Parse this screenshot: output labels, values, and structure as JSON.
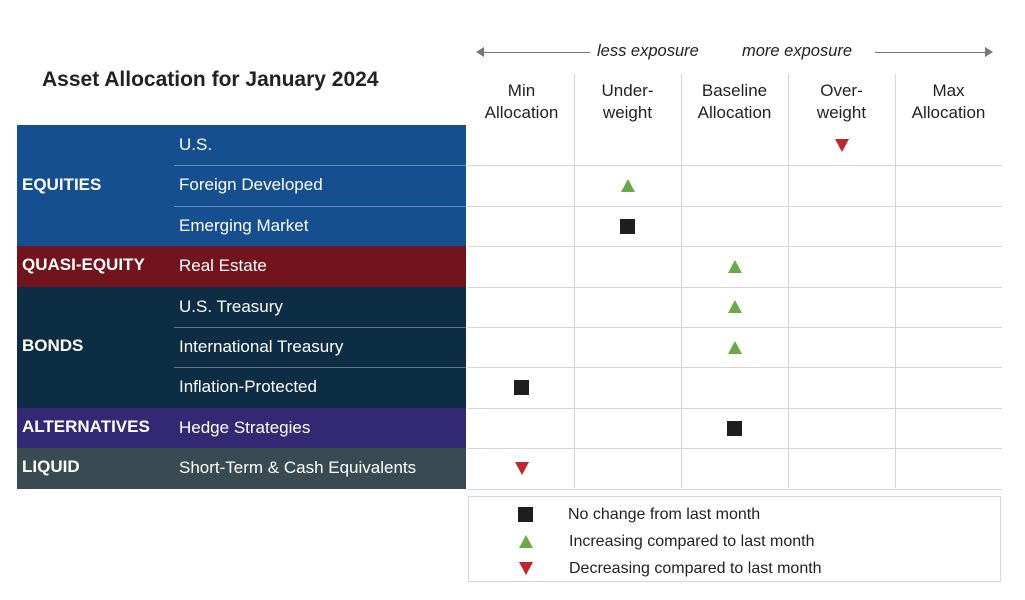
{
  "title": "Asset Allocation for January 2024",
  "exposure": {
    "less": "less exposure",
    "more": "more exposure"
  },
  "columns": [
    {
      "line1": "Min",
      "line2": "Allocation"
    },
    {
      "line1": "Under-",
      "line2": "weight"
    },
    {
      "line1": "Baseline",
      "line2": "Allocation"
    },
    {
      "line1": "Over-",
      "line2": "weight"
    },
    {
      "line1": "Max",
      "line2": "Allocation"
    }
  ],
  "categories": [
    {
      "name": "EQUITIES",
      "color": "#164f8f",
      "rows": 3
    },
    {
      "name": "QUASI-EQUITY",
      "color": "#72141e",
      "rows": 1
    },
    {
      "name": "BONDS",
      "color": "#0d2d45",
      "rows": 3
    },
    {
      "name": "ALTERNATIVES",
      "color": "#322874",
      "rows": 1
    },
    {
      "name": "LIQUID",
      "color": "#3a4a52",
      "rows": 1
    }
  ],
  "chart_data": {
    "type": "table",
    "title": "Asset Allocation for January 2024",
    "rows": [
      {
        "category": "EQUITIES",
        "label": "U.S.",
        "position": "Over-weight",
        "change": "decreasing"
      },
      {
        "category": "EQUITIES",
        "label": "Foreign Developed",
        "position": "Under-weight",
        "change": "increasing"
      },
      {
        "category": "EQUITIES",
        "label": "Emerging Market",
        "position": "Under-weight",
        "change": "no change"
      },
      {
        "category": "QUASI-EQUITY",
        "label": "Real Estate",
        "position": "Baseline Allocation",
        "change": "increasing"
      },
      {
        "category": "BONDS",
        "label": "U.S. Treasury",
        "position": "Baseline Allocation",
        "change": "increasing"
      },
      {
        "category": "BONDS",
        "label": "International Treasury",
        "position": "Baseline Allocation",
        "change": "increasing"
      },
      {
        "category": "BONDS",
        "label": "Inflation-Protected",
        "position": "Min Allocation",
        "change": "no change"
      },
      {
        "category": "ALTERNATIVES",
        "label": "Hedge Strategies",
        "position": "Baseline Allocation",
        "change": "no change"
      },
      {
        "category": "LIQUID",
        "label": "Short-Term & Cash Equivalents",
        "position": "Min Allocation",
        "change": "decreasing"
      }
    ]
  },
  "legend": [
    {
      "symbol": "square",
      "label": "No change from last month"
    },
    {
      "symbol": "up",
      "label": "Increasing compared to last month"
    },
    {
      "symbol": "down",
      "label": "Decreasing compared to last month"
    }
  ],
  "colors": {
    "increase": "#6aaa45",
    "decrease": "#c0262d",
    "nochange": "#1e1e1e"
  }
}
